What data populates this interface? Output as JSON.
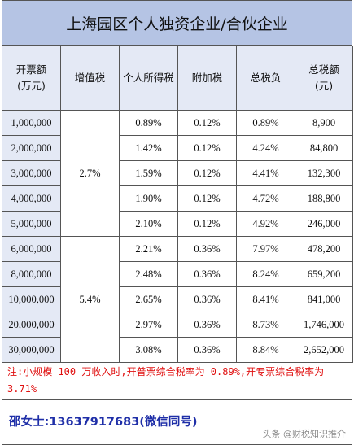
{
  "title": "上海园区个人独资企业/合伙企业",
  "headers": {
    "revenue_line1": "开票额",
    "revenue_line2": "(万元)",
    "vat": "增值税",
    "income_tax": "个人所得税",
    "surcharge": "附加税",
    "total_burden": "总税负",
    "total_tax_line1": "总税额",
    "total_tax_line2": "(元)"
  },
  "vat_groups": [
    "2.7%",
    "5.4%"
  ],
  "rows": [
    {
      "revenue": "1,000,000",
      "income_tax": "0.89%",
      "surcharge": "0.12%",
      "total_burden": "0.89%",
      "total_tax": "8,900"
    },
    {
      "revenue": "2,000,000",
      "income_tax": "1.42%",
      "surcharge": "0.12%",
      "total_burden": "4.24%",
      "total_tax": "84,800"
    },
    {
      "revenue": "3,000,000",
      "income_tax": "1.59%",
      "surcharge": "0.12%",
      "total_burden": "4.41%",
      "total_tax": "132,300"
    },
    {
      "revenue": "4,000,000",
      "income_tax": "1.90%",
      "surcharge": "0.12%",
      "total_burden": "4.72%",
      "total_tax": "188,800"
    },
    {
      "revenue": "5,000,000",
      "income_tax": "2.10%",
      "surcharge": "0.12%",
      "total_burden": "4.92%",
      "total_tax": "246,000"
    },
    {
      "revenue": "6,000,000",
      "income_tax": "2.21%",
      "surcharge": "0.36%",
      "total_burden": "7.97%",
      "total_tax": "478,200"
    },
    {
      "revenue": "8,000,000",
      "income_tax": "2.48%",
      "surcharge": "0.36%",
      "total_burden": "8.24%",
      "total_tax": "659,200"
    },
    {
      "revenue": "10,000,000",
      "income_tax": "2.65%",
      "surcharge": "0.36%",
      "total_burden": "8.41%",
      "total_tax": "841,000"
    },
    {
      "revenue": "20,000,000",
      "income_tax": "2.97%",
      "surcharge": "0.36%",
      "total_burden": "8.73%",
      "total_tax": "1,746,000"
    },
    {
      "revenue": "30,000,000",
      "income_tax": "3.08%",
      "surcharge": "0.36%",
      "total_burden": "8.84%",
      "total_tax": "2,652,000"
    }
  ],
  "note": "注:小规模 100 万收入时,开普票综合税率为 0.89%,开专票综合税率为 3.71%",
  "contact": "邵女士:13637917683(微信同号)",
  "watermark": "头条 @财税知识推介"
}
